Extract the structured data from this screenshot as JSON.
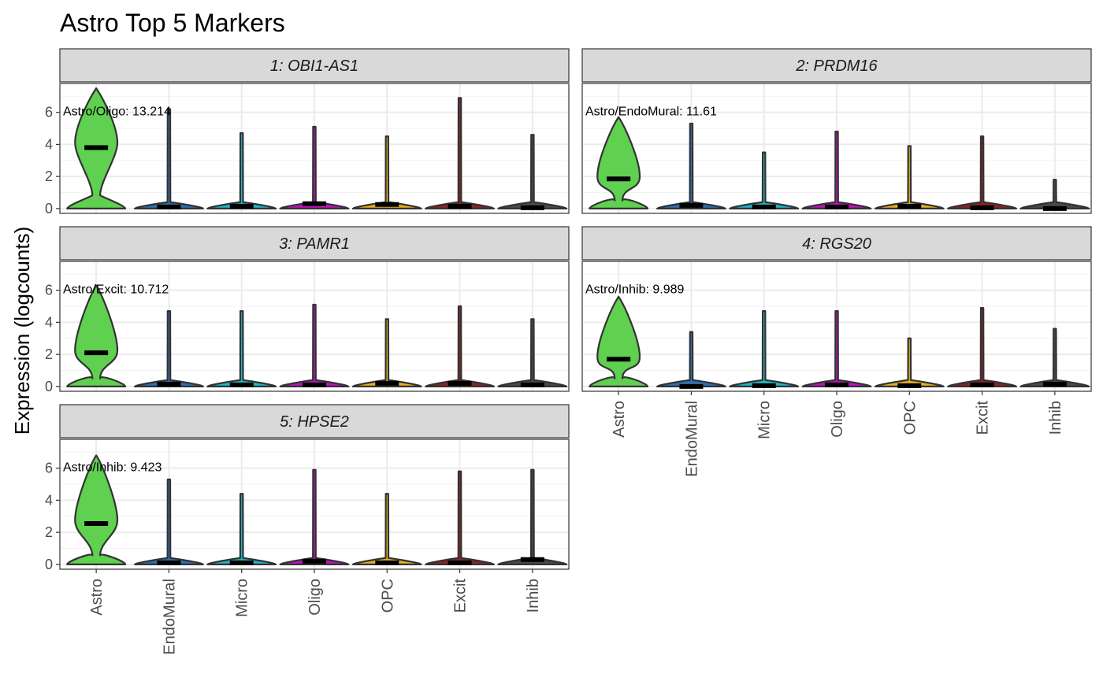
{
  "chart_data": {
    "type": "violin",
    "title": "Astro Top 5 Markers",
    "ylabel": "Expression (logcounts)",
    "xlabel": "",
    "categories": [
      "Astro",
      "EndoMural",
      "Micro",
      "Oligo",
      "OPC",
      "Excit",
      "Inhib"
    ],
    "colors": {
      "Astro": "#5FD04F",
      "EndoMural": "#2E6FB5",
      "Micro": "#1FB8C9",
      "Oligo": "#C010C0",
      "OPC": "#E6B020",
      "Excit": "#8B2323",
      "Inhib": "#4A4A4A"
    },
    "y_ticks": [
      0,
      2,
      4,
      6
    ],
    "ylim": [
      -0.3,
      7.8
    ],
    "grid": true,
    "legend": "none",
    "panels": [
      {
        "strip": "1: OBI1-AS1",
        "annotation": "Astro/Oligo: 13.214",
        "violins": [
          {
            "category": "Astro",
            "max": 7.5,
            "median": 3.8
          },
          {
            "category": "EndoMural",
            "max": 6.2,
            "median": 0.1
          },
          {
            "category": "Micro",
            "max": 4.7,
            "median": 0.15
          },
          {
            "category": "Oligo",
            "max": 5.1,
            "median": 0.3
          },
          {
            "category": "OPC",
            "max": 4.5,
            "median": 0.25
          },
          {
            "category": "Excit",
            "max": 6.9,
            "median": 0.15
          },
          {
            "category": "Inhib",
            "max": 4.6,
            "median": 0.05
          }
        ]
      },
      {
        "strip": "2: PRDM16",
        "annotation": "Astro/EndoMural: 11.61",
        "violins": [
          {
            "category": "Astro",
            "max": 5.7,
            "median": 1.85
          },
          {
            "category": "EndoMural",
            "max": 5.3,
            "median": 0.2
          },
          {
            "category": "Micro",
            "max": 3.5,
            "median": 0.1
          },
          {
            "category": "Oligo",
            "max": 4.8,
            "median": 0.1
          },
          {
            "category": "OPC",
            "max": 3.9,
            "median": 0.15
          },
          {
            "category": "Excit",
            "max": 4.5,
            "median": 0.05
          },
          {
            "category": "Inhib",
            "max": 1.8,
            "median": 0.0
          }
        ]
      },
      {
        "strip": "3: PAMR1",
        "annotation": "Astro/Excit: 10.712",
        "violins": [
          {
            "category": "Astro",
            "max": 6.3,
            "median": 2.1
          },
          {
            "category": "EndoMural",
            "max": 4.7,
            "median": 0.15
          },
          {
            "category": "Micro",
            "max": 4.7,
            "median": 0.1
          },
          {
            "category": "Oligo",
            "max": 5.1,
            "median": 0.1
          },
          {
            "category": "OPC",
            "max": 4.2,
            "median": 0.2
          },
          {
            "category": "Excit",
            "max": 5.0,
            "median": 0.2
          },
          {
            "category": "Inhib",
            "max": 4.2,
            "median": 0.1
          }
        ]
      },
      {
        "strip": "4: RGS20",
        "annotation": "Astro/Inhib: 9.989",
        "violins": [
          {
            "category": "Astro",
            "max": 5.6,
            "median": 1.7
          },
          {
            "category": "EndoMural",
            "max": 3.4,
            "median": 0.0
          },
          {
            "category": "Micro",
            "max": 4.7,
            "median": 0.05
          },
          {
            "category": "Oligo",
            "max": 4.7,
            "median": 0.1
          },
          {
            "category": "OPC",
            "max": 3.0,
            "median": 0.05
          },
          {
            "category": "Excit",
            "max": 4.9,
            "median": 0.1
          },
          {
            "category": "Inhib",
            "max": 3.6,
            "median": 0.15
          }
        ]
      },
      {
        "strip": "5: HPSE2",
        "annotation": "Astro/Inhib: 9.423",
        "violins": [
          {
            "category": "Astro",
            "max": 6.8,
            "median": 2.55
          },
          {
            "category": "EndoMural",
            "max": 5.3,
            "median": 0.1
          },
          {
            "category": "Micro",
            "max": 4.4,
            "median": 0.1
          },
          {
            "category": "Oligo",
            "max": 5.9,
            "median": 0.2
          },
          {
            "category": "OPC",
            "max": 4.4,
            "median": 0.1
          },
          {
            "category": "Excit",
            "max": 5.8,
            "median": 0.1
          },
          {
            "category": "Inhib",
            "max": 5.9,
            "median": 0.3
          }
        ]
      }
    ]
  }
}
